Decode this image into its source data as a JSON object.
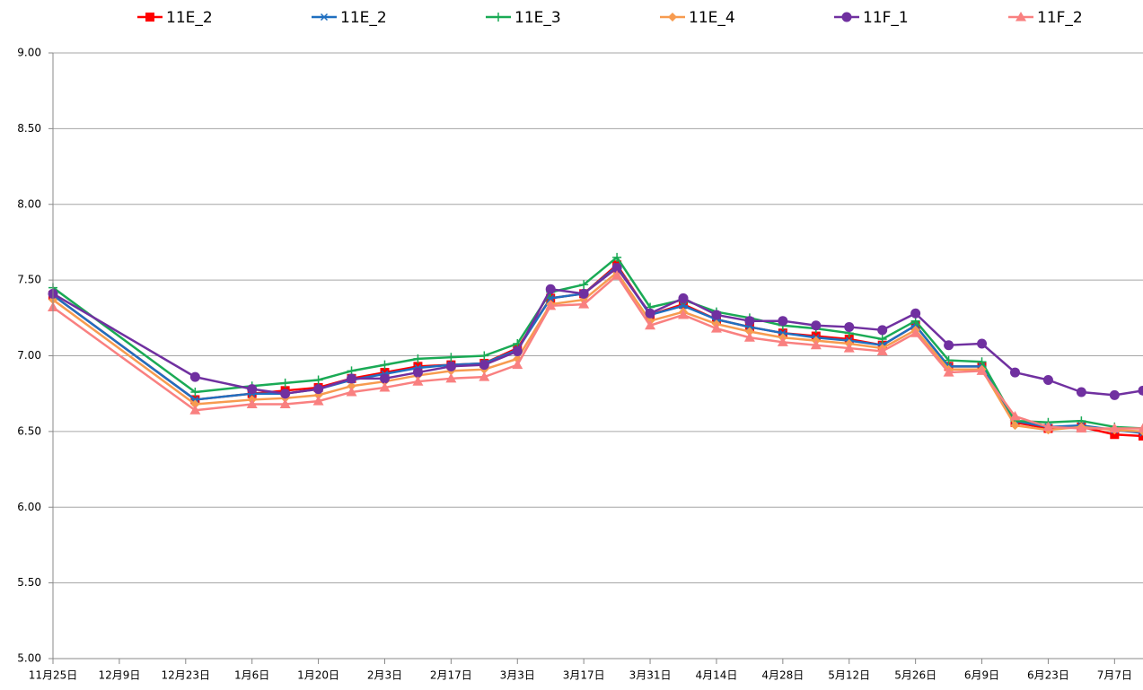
{
  "chart_data": {
    "type": "line",
    "x": [
      0,
      30,
      42,
      49,
      56,
      63,
      70,
      77,
      84,
      91,
      98,
      105,
      112,
      119,
      126,
      133,
      140,
      147,
      154,
      161,
      168,
      175,
      182,
      189,
      196,
      203,
      210,
      217,
      224,
      230
    ],
    "xlim": [
      0,
      230
    ],
    "xticks": [
      {
        "value": 0,
        "label": "11月25日"
      },
      {
        "value": 14,
        "label": "12月9日"
      },
      {
        "value": 28,
        "label": "12月23日"
      },
      {
        "value": 42,
        "label": "1月6日"
      },
      {
        "value": 56,
        "label": "1月20日"
      },
      {
        "value": 70,
        "label": "2月3日"
      },
      {
        "value": 84,
        "label": "2月17日"
      },
      {
        "value": 98,
        "label": "3月3日"
      },
      {
        "value": 112,
        "label": "3月17日"
      },
      {
        "value": 126,
        "label": "3月31日"
      },
      {
        "value": 140,
        "label": "4月14日"
      },
      {
        "value": 154,
        "label": "4月28日"
      },
      {
        "value": 168,
        "label": "5月12日"
      },
      {
        "value": 182,
        "label": "5月26日"
      },
      {
        "value": 196,
        "label": "6月9日"
      },
      {
        "value": 210,
        "label": "6月23日"
      },
      {
        "value": 224,
        "label": "7月7日"
      }
    ],
    "ylim": [
      5,
      9
    ],
    "yticks": [
      {
        "value": 5,
        "label": "5.00"
      },
      {
        "value": 5.5,
        "label": "5.50"
      },
      {
        "value": 6,
        "label": "6.00"
      },
      {
        "value": 6.5,
        "label": "6.50"
      },
      {
        "value": 7,
        "label": "7.00"
      },
      {
        "value": 7.5,
        "label": "7.50"
      },
      {
        "value": 8,
        "label": "8.00"
      },
      {
        "value": 8.5,
        "label": "8.50"
      },
      {
        "value": 9,
        "label": "9.00"
      }
    ],
    "grid": true,
    "legend": "top",
    "series": [
      {
        "name": "11E_2",
        "color": "#ff0000",
        "marker": "square",
        "values": [
          7.4,
          6.71,
          6.75,
          6.77,
          6.79,
          6.85,
          6.89,
          6.93,
          6.94,
          6.95,
          7.05,
          7.38,
          7.41,
          7.6,
          7.27,
          7.34,
          7.24,
          7.19,
          7.15,
          7.13,
          7.11,
          7.07,
          7.2,
          6.93,
          6.93,
          6.56,
          6.52,
          6.53,
          6.48,
          6.47
        ]
      },
      {
        "name": "11E_2",
        "color": "#1f6fc0",
        "marker": "asterisk",
        "values": [
          7.4,
          6.71,
          6.75,
          6.75,
          6.78,
          6.84,
          6.88,
          6.92,
          6.94,
          6.95,
          7.04,
          7.38,
          7.41,
          7.59,
          7.27,
          7.33,
          7.24,
          7.19,
          7.15,
          7.12,
          7.1,
          7.07,
          7.2,
          6.93,
          6.93,
          6.57,
          6.53,
          6.54,
          6.51,
          6.49
        ]
      },
      {
        "name": "11E_3",
        "color": "#1aaa55",
        "marker": "plus",
        "values": [
          7.45,
          6.76,
          6.8,
          6.82,
          6.84,
          6.9,
          6.94,
          6.98,
          6.99,
          7.0,
          7.08,
          7.42,
          7.47,
          7.65,
          7.32,
          7.37,
          7.29,
          7.25,
          7.2,
          7.18,
          7.15,
          7.11,
          7.23,
          6.97,
          6.96,
          6.57,
          6.56,
          6.57,
          6.53,
          6.52
        ]
      },
      {
        "name": "11E_4",
        "color": "#f79b4f",
        "marker": "diamond",
        "values": [
          7.37,
          6.68,
          6.71,
          6.72,
          6.74,
          6.8,
          6.83,
          6.87,
          6.9,
          6.91,
          6.98,
          7.34,
          7.37,
          7.55,
          7.23,
          7.29,
          7.21,
          7.16,
          7.12,
          7.1,
          7.08,
          7.05,
          7.17,
          6.91,
          6.91,
          6.54,
          6.51,
          6.53,
          6.51,
          6.5
        ]
      },
      {
        "name": "11F_1",
        "color": "#7030a0",
        "marker": "circle",
        "values": [
          7.41,
          6.86,
          6.78,
          6.75,
          6.78,
          6.85,
          6.85,
          6.89,
          6.93,
          6.94,
          7.03,
          7.44,
          7.41,
          7.58,
          7.28,
          7.38,
          7.27,
          7.23,
          7.23,
          7.2,
          7.19,
          7.17,
          7.28,
          7.07,
          7.08,
          6.89,
          6.84,
          6.76,
          6.74,
          6.77
        ]
      },
      {
        "name": "11F_2",
        "color": "#f98080",
        "marker": "triangle",
        "values": [
          7.32,
          6.64,
          6.68,
          6.68,
          6.7,
          6.76,
          6.79,
          6.83,
          6.85,
          6.86,
          6.94,
          7.33,
          7.34,
          7.53,
          7.2,
          7.27,
          7.18,
          7.12,
          7.09,
          7.07,
          7.05,
          7.03,
          7.15,
          6.89,
          6.9,
          6.6,
          6.53,
          6.52,
          6.52,
          6.52
        ]
      }
    ]
  }
}
